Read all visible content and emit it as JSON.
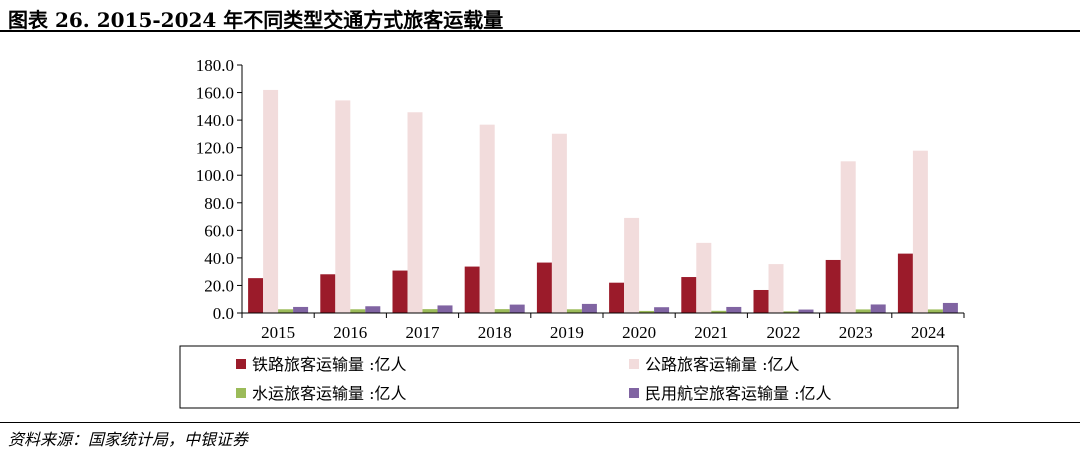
{
  "header": {
    "title": "图表 26. 2015-2024 年不同类型交通方式旅客运载量"
  },
  "footer": {
    "source": "资料来源：国家统计局，中银证券"
  },
  "chart_data": {
    "type": "bar",
    "categories": [
      "2015",
      "2016",
      "2017",
      "2018",
      "2019",
      "2020",
      "2021",
      "2022",
      "2023",
      "2024"
    ],
    "ylim": [
      0,
      180
    ],
    "yticks": [
      "0.0",
      "20.0",
      "40.0",
      "60.0",
      "80.0",
      "100.0",
      "120.0",
      "140.0",
      "160.0",
      "180.0"
    ],
    "grid": false,
    "legend_position": "bottom",
    "series": [
      {
        "name": "铁路旅客运输量 :亿人",
        "color": "#9b1b2a",
        "values": [
          25.3,
          28.1,
          30.8,
          33.7,
          36.6,
          22.0,
          26.1,
          16.7,
          38.5,
          43.1
        ]
      },
      {
        "name": "公路旅客运输量 :亿人",
        "color": "#f2dcdc",
        "values": [
          161.9,
          154.3,
          145.7,
          136.7,
          130.1,
          69.0,
          50.9,
          35.5,
          110.1,
          117.8
        ]
      },
      {
        "name": "水运旅客运输量 :亿人",
        "color": "#9bbb59",
        "values": [
          2.7,
          2.7,
          2.8,
          2.8,
          2.7,
          1.5,
          1.6,
          1.2,
          2.6,
          2.6
        ]
      },
      {
        "name": "民用航空旅客运输量 :亿人",
        "color": "#8064a2",
        "values": [
          4.4,
          4.9,
          5.5,
          6.1,
          6.6,
          4.2,
          4.4,
          2.5,
          6.2,
          7.3
        ]
      }
    ]
  }
}
